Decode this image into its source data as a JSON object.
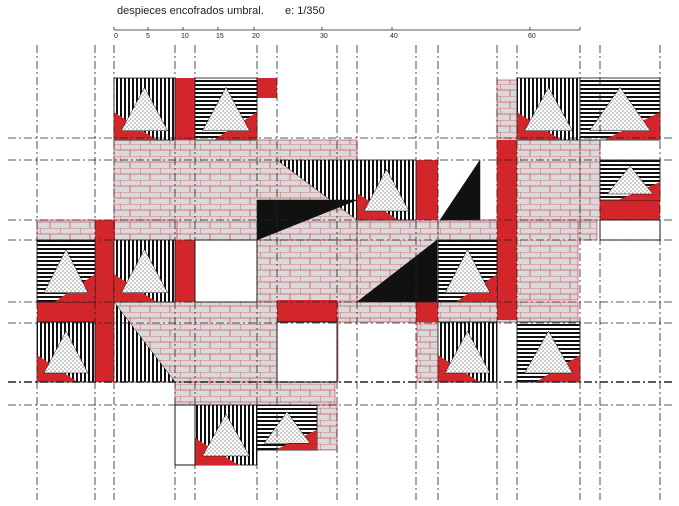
{
  "header": {
    "title": "despieces encofrados umbral.",
    "scale": "e: 1/350"
  },
  "scale_bar": {
    "labels": [
      "0",
      "5",
      "10",
      "15",
      "20",
      "30",
      "40",
      "60"
    ]
  }
}
